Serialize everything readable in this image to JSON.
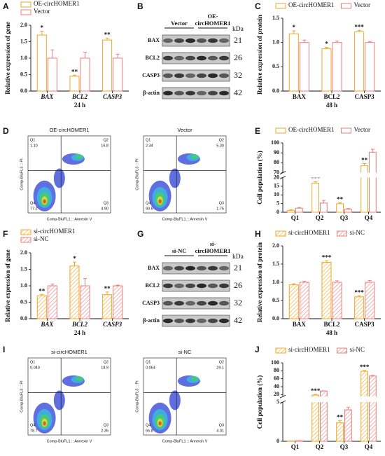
{
  "panels": [
    "A",
    "B",
    "C",
    "D",
    "E",
    "F",
    "G",
    "H",
    "I",
    "J"
  ],
  "chart_data": [
    {
      "type": "bar",
      "ylabel": "Relative expression of gene",
      "xlabel": "24 h",
      "categories": [
        "BAX",
        "BCL2",
        "CASP3"
      ],
      "category_style": "italic",
      "ylim": [
        0,
        2
      ],
      "yticks": [
        {
          "value": 0,
          "label": "0.0"
        },
        {
          "value": 0.5,
          "label": "0.5"
        },
        {
          "value": 1,
          "label": "1.0"
        },
        {
          "value": 1.5,
          "label": "1.5"
        },
        {
          "value": 2,
          "label": "2.0"
        }
      ],
      "legend": "top-vertical",
      "fill": "plain",
      "series": [
        {
          "name": "OE-circHOMER1",
          "color": "#f5a623",
          "values": [
            1.7,
            0.45,
            1.55
          ],
          "errors": [
            0.12,
            0.03,
            0.06
          ],
          "significance": [
            "*",
            "**",
            "**"
          ]
        },
        {
          "name": "Vector",
          "color": "#f07c7c",
          "values": [
            1,
            1,
            1
          ],
          "errors": [
            0.25,
            0.18,
            0.12
          ]
        }
      ]
    },
    {
      "type": "bar",
      "ylabel": "Relative expression of protein",
      "xlabel": "48 h",
      "categories": [
        "BAX",
        "BCL2",
        "CASP3"
      ],
      "category_style": "normal",
      "ylim": [
        0,
        1.5
      ],
      "yticks": [
        {
          "value": 0,
          "label": "0.0"
        },
        {
          "value": 0.5,
          "label": "0.5"
        },
        {
          "value": 1,
          "label": "1.0"
        },
        {
          "value": 1.5,
          "label": "1.5"
        }
      ],
      "legend": "top-horizontal",
      "fill": "plain",
      "series": [
        {
          "name": "OE-circHOMER1",
          "color": "#f5a623",
          "values": [
            1.18,
            0.87,
            1.22
          ],
          "errors": [
            0.06,
            0.03,
            0.03
          ],
          "significance": [
            "*",
            "*",
            "***"
          ]
        },
        {
          "name": "Vector",
          "color": "#f07c7c",
          "values": [
            1,
            1,
            1
          ],
          "errors": [
            0.05,
            0.03,
            0.02
          ]
        }
      ]
    },
    {
      "type": "bar",
      "ylabel": "Cell population (%)",
      "categories": [
        "Q1",
        "Q2",
        "Q3",
        "Q4"
      ],
      "category_style": "normal",
      "ylim": [
        0,
        100
      ],
      "ybreak": [
        20,
        70
      ],
      "yticks": [
        0,
        5,
        10,
        15,
        20,
        70,
        80,
        90,
        100
      ],
      "legend": "top-horizontal",
      "fill": "plain",
      "series": [
        {
          "name": "OE-circHOMER1",
          "color": "#f5a623",
          "values": [
            1.1,
            16.8,
            4.9,
            77.2
          ],
          "errors": [
            0.3,
            0.8,
            0.6,
            2
          ],
          "significance": [
            null,
            "***",
            "**",
            "**"
          ]
        },
        {
          "name": "Vector",
          "color": "#f07c7c",
          "values": [
            2.34,
            5.3,
            1.75,
            90.6
          ],
          "errors": [
            0.4,
            1.5,
            0.4,
            3
          ]
        }
      ]
    },
    {
      "type": "bar",
      "ylabel": "Relative expression of gene",
      "xlabel": "24 h",
      "categories": [
        "BAX",
        "BCL2",
        "CASP3"
      ],
      "category_style": "italic",
      "ylim": [
        0,
        2
      ],
      "yticks": [
        {
          "value": 0,
          "label": "0.0"
        },
        {
          "value": 0.5,
          "label": "0.5"
        },
        {
          "value": 1,
          "label": "1.0"
        },
        {
          "value": 1.5,
          "label": "1.5"
        },
        {
          "value": 2,
          "label": "2.0"
        }
      ],
      "legend": "top-vertical",
      "fill": "hatched",
      "series": [
        {
          "name": "si-circHOMER1",
          "color": "#f5a623",
          "values": [
            0.7,
            1.6,
            0.73
          ],
          "errors": [
            0.04,
            0.12,
            0.08
          ],
          "significance": [
            "**",
            "*",
            "**"
          ]
        },
        {
          "name": "si-NC",
          "color": "#f07c7c",
          "values": [
            1,
            1,
            1
          ],
          "errors": [
            0.05,
            0.22,
            0.02
          ]
        }
      ]
    },
    {
      "type": "bar",
      "ylabel": "Relative expression of protein",
      "xlabel": "48 h",
      "categories": [
        "BAX",
        "BCL2",
        "CASP3"
      ],
      "category_style": "normal",
      "ylim": [
        0,
        2
      ],
      "yticks": [
        {
          "value": 0,
          "label": "0.0"
        },
        {
          "value": 0.5,
          "label": "0.5"
        },
        {
          "value": 1,
          "label": "1.0"
        },
        {
          "value": 1.5,
          "label": "1.5"
        },
        {
          "value": 2,
          "label": "2.0"
        }
      ],
      "legend": "top-horizontal",
      "fill": "hatched",
      "series": [
        {
          "name": "si-circHOMER1",
          "color": "#f5a623",
          "values": [
            0.93,
            1.55,
            0.6
          ],
          "errors": [
            0.03,
            0.04,
            0.03
          ],
          "significance": [
            null,
            "***",
            "***"
          ]
        },
        {
          "name": "si-NC",
          "color": "#f07c7c",
          "values": [
            1,
            1,
            1
          ],
          "errors": [
            0.03,
            0.04,
            0.05
          ]
        }
      ]
    },
    {
      "type": "bar",
      "ylabel": "Cell population (%)",
      "categories": [
        "Q1",
        "Q2",
        "Q3",
        "Q4"
      ],
      "category_style": "normal",
      "ylim": [
        0,
        100
      ],
      "ybreak": [
        5,
        15
      ],
      "yticks": [
        0,
        5,
        20,
        40,
        60,
        80,
        100
      ],
      "legend": "top-horizontal",
      "fill": "hatched",
      "series": [
        {
          "name": "si-circHOMER1",
          "color": "#f5a623",
          "values": [
            0.04,
            18.9,
            2.35,
            78.7
          ],
          "errors": [
            0.01,
            1.5,
            0.3,
            2
          ],
          "significance": [
            null,
            "***",
            "**",
            "***"
          ]
        },
        {
          "name": "si-NC",
          "color": "#f07c7c",
          "values": [
            0.064,
            29.1,
            4.01,
            66.8
          ],
          "errors": [
            0.01,
            0.5,
            0.3,
            1.5
          ]
        }
      ]
    }
  ],
  "blots": [
    {
      "groups": [
        [
          "Vector"
        ],
        [
          "OE-",
          "circHOMER1"
        ]
      ],
      "unit": "kDa",
      "rows": [
        {
          "protein": "BAX",
          "kda": 21
        },
        {
          "protein": "BCL2",
          "kda": 26
        },
        {
          "protein": "CASP3",
          "kda": 32
        },
        {
          "protein": "β-actin",
          "kda": 42
        }
      ]
    },
    {
      "groups": [
        [
          "si-NC"
        ],
        [
          "si-",
          "circHOMER1"
        ]
      ],
      "unit": "kDa",
      "rows": [
        {
          "protein": "BAX",
          "kda": 21
        },
        {
          "protein": "BCL2",
          "kda": 26
        },
        {
          "protein": "CASP3",
          "kda": 32
        },
        {
          "protein": "β-actin",
          "kda": 42
        }
      ]
    }
  ],
  "flow": [
    {
      "x_label": "Comp-BluFL1 :: Annexin V",
      "y_label": "Comp-BluFL3 :: PI",
      "plots": [
        {
          "title": "OE-circHOMER1",
          "quadrants": [
            [
              "Q1",
              "1.10"
            ],
            [
              "Q2",
              "16.8"
            ],
            [
              "Q3",
              "4.90"
            ],
            [
              "Q4",
              "77.2"
            ]
          ]
        },
        {
          "title": "Vector",
          "quadrants": [
            [
              "Q1",
              "2.34"
            ],
            [
              "Q2",
              "5.30"
            ],
            [
              "Q3",
              "1.75"
            ],
            [
              "Q4",
              "90.6"
            ]
          ]
        }
      ]
    },
    {
      "x_label": "Comp-BluFL1 :: Annexin V",
      "y_label": "Comp-BluFL3 :: PI",
      "plots": [
        {
          "title": "si-circHOMER1",
          "quadrants": [
            [
              "Q1",
              "0.040"
            ],
            [
              "Q2",
              "18.9"
            ],
            [
              "Q3",
              "2.35"
            ],
            [
              "Q4",
              "78.7"
            ]
          ]
        },
        {
          "title": "si-NC",
          "quadrants": [
            [
              "Q1",
              "0.064"
            ],
            [
              "Q2",
              "29.1"
            ],
            [
              "Q3",
              "4.01"
            ],
            [
              "Q4",
              "66.8"
            ]
          ]
        }
      ]
    }
  ]
}
